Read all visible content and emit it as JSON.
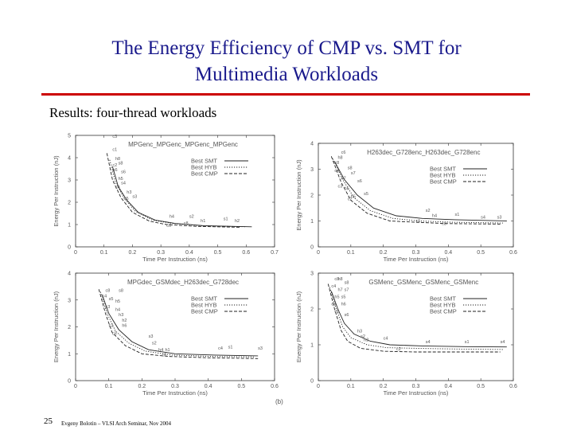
{
  "slide": {
    "title_line1": "The Energy Efficiency of CMP vs. SMT for",
    "title_line2": "Multimedia Workloads",
    "subtitle": "Results: four-thread workloads",
    "page_number": "25",
    "footer": "Evgeny Bolotin – VLSI Arch Seminar, Nov 2004",
    "figure_label": "(b)",
    "title_color": "#1a1a8c",
    "rule_color": "#cc0000"
  },
  "chart_data": [
    {
      "type": "line",
      "title": "MPGenc_MPGenc_MPGenc_MPGenc",
      "xlabel": "Time Per Instruction (ns)",
      "ylabel": "Energy Per Instruction (nJ)",
      "xlim": [
        0,
        0.7
      ],
      "ylim": [
        0,
        5
      ],
      "xticks": [
        "0",
        "0.1",
        "0.2",
        "0.3",
        "0.4",
        "0.5",
        "0.6",
        "0.7"
      ],
      "yticks": [
        "0",
        "1",
        "2",
        "3",
        "4",
        "5"
      ],
      "legend_position": "top-right",
      "series": [
        {
          "name": "Best SMT",
          "style": "solid",
          "x": [
            0.13,
            0.15,
            0.18,
            0.22,
            0.28,
            0.35,
            0.45,
            0.62
          ],
          "y": [
            3.6,
            2.7,
            2.1,
            1.55,
            1.2,
            1.05,
            0.95,
            0.9
          ]
        },
        {
          "name": "Best HYB",
          "style": "dotted",
          "x": [
            0.12,
            0.14,
            0.17,
            0.21,
            0.27,
            0.34,
            0.44,
            0.6
          ],
          "y": [
            3.9,
            2.9,
            2.2,
            1.6,
            1.2,
            1.05,
            0.95,
            0.9
          ]
        },
        {
          "name": "Best CMP",
          "style": "dashed",
          "x": [
            0.11,
            0.13,
            0.16,
            0.2,
            0.26,
            0.32,
            0.42,
            0.58
          ],
          "y": [
            4.2,
            3.0,
            2.2,
            1.55,
            1.15,
            1.0,
            0.92,
            0.88
          ]
        }
      ],
      "labels": [
        {
          "text": "c3",
          "x": 0.13,
          "y": 4.9
        },
        {
          "text": "c1",
          "x": 0.13,
          "y": 4.3
        },
        {
          "text": "h8",
          "x": 0.14,
          "y": 3.9
        },
        {
          "text": "c2",
          "x": 0.13,
          "y": 3.6
        },
        {
          "text": "s8",
          "x": 0.15,
          "y": 3.7
        },
        {
          "text": "h6",
          "x": 0.13,
          "y": 3.4
        },
        {
          "text": "s6",
          "x": 0.16,
          "y": 3.3
        },
        {
          "text": "h5",
          "x": 0.15,
          "y": 3.0
        },
        {
          "text": "s4",
          "x": 0.16,
          "y": 2.8
        },
        {
          "text": "c4",
          "x": 0.14,
          "y": 2.6
        },
        {
          "text": "h3",
          "x": 0.18,
          "y": 2.4
        },
        {
          "text": "s3",
          "x": 0.2,
          "y": 2.2
        },
        {
          "text": "c5",
          "x": 0.17,
          "y": 2.1
        },
        {
          "text": "h4",
          "x": 0.33,
          "y": 1.3
        },
        {
          "text": "s2",
          "x": 0.4,
          "y": 1.3
        },
        {
          "text": "s1",
          "x": 0.52,
          "y": 1.2
        },
        {
          "text": "h2",
          "x": 0.56,
          "y": 1.1
        },
        {
          "text": "c6",
          "x": 0.32,
          "y": 0.9
        },
        {
          "text": "c8",
          "x": 0.38,
          "y": 1.0
        },
        {
          "text": "h1",
          "x": 0.44,
          "y": 1.1
        }
      ]
    },
    {
      "type": "line",
      "title": "H263dec_G728enc_H263dec_G728enc",
      "xlabel": "Time Per Instruction (ns)",
      "ylabel": "Energy Per Instruction (nJ)",
      "xlim": [
        0,
        0.6
      ],
      "ylim": [
        0,
        4
      ],
      "xticks": [
        "0",
        "0.1",
        "0.2",
        "0.3",
        "0.4",
        "0.5",
        "0.6"
      ],
      "yticks": [
        "0",
        "1",
        "2",
        "3",
        "4"
      ],
      "legend_position": "top-right",
      "series": [
        {
          "name": "Best SMT",
          "style": "solid",
          "x": [
            0.05,
            0.08,
            0.12,
            0.17,
            0.24,
            0.32,
            0.42,
            0.58
          ],
          "y": [
            3.3,
            2.6,
            2.0,
            1.5,
            1.2,
            1.1,
            1.05,
            1.0
          ]
        },
        {
          "name": "Best HYB",
          "style": "dotted",
          "x": [
            0.045,
            0.075,
            0.11,
            0.16,
            0.23,
            0.31,
            0.41,
            0.57
          ],
          "y": [
            3.4,
            2.6,
            1.9,
            1.4,
            1.1,
            1.0,
            0.95,
            0.92
          ]
        },
        {
          "name": "Best CMP",
          "style": "dashed",
          "x": [
            0.04,
            0.07,
            0.1,
            0.15,
            0.22,
            0.3,
            0.4,
            0.56
          ],
          "y": [
            3.5,
            2.5,
            1.8,
            1.3,
            1.0,
            0.95,
            0.9,
            0.88
          ]
        }
      ],
      "labels": [
        {
          "text": "c6",
          "x": 0.07,
          "y": 3.6
        },
        {
          "text": "h8",
          "x": 0.06,
          "y": 3.4
        },
        {
          "text": "c8",
          "x": 0.05,
          "y": 3.2
        },
        {
          "text": "s8",
          "x": 0.09,
          "y": 3.0
        },
        {
          "text": "s7",
          "x": 0.1,
          "y": 2.8
        },
        {
          "text": "c4",
          "x": 0.05,
          "y": 2.9
        },
        {
          "text": "h7",
          "x": 0.07,
          "y": 2.6
        },
        {
          "text": "s6",
          "x": 0.12,
          "y": 2.5
        },
        {
          "text": "c3",
          "x": 0.06,
          "y": 2.3
        },
        {
          "text": "h6",
          "x": 0.08,
          "y": 2.2
        },
        {
          "text": "s5",
          "x": 0.14,
          "y": 2.0
        },
        {
          "text": "h5",
          "x": 0.1,
          "y": 1.9
        },
        {
          "text": "c2",
          "x": 0.09,
          "y": 1.8
        },
        {
          "text": "s2",
          "x": 0.33,
          "y": 1.35
        },
        {
          "text": "h4",
          "x": 0.35,
          "y": 1.15
        },
        {
          "text": "s1",
          "x": 0.42,
          "y": 1.2
        },
        {
          "text": "s4",
          "x": 0.5,
          "y": 1.1
        },
        {
          "text": "s3",
          "x": 0.55,
          "y": 1.1
        },
        {
          "text": "c1",
          "x": 0.3,
          "y": 0.95
        },
        {
          "text": "c8",
          "x": 0.38,
          "y": 0.85
        }
      ]
    },
    {
      "type": "line",
      "title": "MPGdec_GSMdec_H263dec_G728dec",
      "xlabel": "Time Per Instruction (ns)",
      "ylabel": "Energy Per Instruction (nJ)",
      "xlim": [
        0,
        0.6
      ],
      "ylim": [
        0,
        4
      ],
      "xticks": [
        "0",
        "0.1",
        "0.2",
        "0.3",
        "0.4",
        "0.5",
        "0.6"
      ],
      "yticks": [
        "0",
        "1",
        "2",
        "3",
        "4"
      ],
      "legend_position": "top-right",
      "series": [
        {
          "name": "Best SMT",
          "style": "solid",
          "x": [
            0.08,
            0.1,
            0.13,
            0.17,
            0.22,
            0.3,
            0.42,
            0.55
          ],
          "y": [
            3.2,
            2.5,
            1.9,
            1.45,
            1.15,
            1.0,
            0.95,
            0.92
          ]
        },
        {
          "name": "Best HYB",
          "style": "dotted",
          "x": [
            0.075,
            0.095,
            0.12,
            0.16,
            0.21,
            0.29,
            0.41,
            0.54
          ],
          "y": [
            3.3,
            2.5,
            1.85,
            1.4,
            1.1,
            0.95,
            0.9,
            0.88
          ]
        },
        {
          "name": "Best CMP",
          "style": "dashed",
          "x": [
            0.07,
            0.09,
            0.11,
            0.15,
            0.2,
            0.28,
            0.4,
            0.55
          ],
          "y": [
            3.4,
            2.5,
            1.8,
            1.3,
            1.0,
            0.9,
            0.85,
            0.82
          ]
        }
      ],
      "labels": [
        {
          "text": "c8",
          "x": 0.09,
          "y": 3.3
        },
        {
          "text": "s8",
          "x": 0.13,
          "y": 3.3
        },
        {
          "text": "c4",
          "x": 0.08,
          "y": 3.1
        },
        {
          "text": "s5",
          "x": 0.1,
          "y": 3.0
        },
        {
          "text": "h5",
          "x": 0.12,
          "y": 2.9
        },
        {
          "text": "c3",
          "x": 0.09,
          "y": 2.7
        },
        {
          "text": "h4",
          "x": 0.12,
          "y": 2.6
        },
        {
          "text": "h3",
          "x": 0.13,
          "y": 2.4
        },
        {
          "text": "h2",
          "x": 0.14,
          "y": 2.2
        },
        {
          "text": "c2",
          "x": 0.1,
          "y": 2.0
        },
        {
          "text": "h6",
          "x": 0.14,
          "y": 2.0
        },
        {
          "text": "c5",
          "x": 0.11,
          "y": 1.7
        },
        {
          "text": "s3",
          "x": 0.22,
          "y": 1.6
        },
        {
          "text": "s2",
          "x": 0.23,
          "y": 1.35
        },
        {
          "text": "h4",
          "x": 0.25,
          "y": 1.1
        },
        {
          "text": "h1",
          "x": 0.27,
          "y": 1.1
        },
        {
          "text": "c6",
          "x": 0.26,
          "y": 0.9
        },
        {
          "text": "c4",
          "x": 0.43,
          "y": 1.15
        },
        {
          "text": "s1",
          "x": 0.46,
          "y": 1.2
        },
        {
          "text": "s3",
          "x": 0.55,
          "y": 1.15
        }
      ]
    },
    {
      "type": "line",
      "title": "GSMenc_GSMenc_GSMenc_GSMenc",
      "xlabel": "Time Per Instruction (ns)",
      "ylabel": "Energy Per Instruction (nJ)",
      "xlim": [
        0,
        0.6
      ],
      "ylim": [
        0,
        3
      ],
      "xticks": [
        "0",
        "0.1",
        "0.2",
        "0.3",
        "0.4",
        "0.5",
        "0.6"
      ],
      "yticks": [
        "0",
        "1",
        "2",
        "3"
      ],
      "legend_position": "top-right",
      "series": [
        {
          "name": "Best SMT",
          "style": "solid",
          "x": [
            0.04,
            0.06,
            0.08,
            0.11,
            0.16,
            0.22,
            0.32,
            0.45,
            0.58
          ],
          "y": [
            2.5,
            2.0,
            1.6,
            1.3,
            1.1,
            1.0,
            0.97,
            0.95,
            0.94
          ]
        },
        {
          "name": "Best HYB",
          "style": "dotted",
          "x": [
            0.035,
            0.055,
            0.075,
            0.1,
            0.15,
            0.21,
            0.31,
            0.44,
            0.57
          ],
          "y": [
            2.6,
            2.0,
            1.5,
            1.2,
            1.0,
            0.92,
            0.9,
            0.88,
            0.87
          ]
        },
        {
          "name": "Best CMP",
          "style": "dashed",
          "x": [
            0.03,
            0.05,
            0.07,
            0.09,
            0.13,
            0.2,
            0.3,
            0.43,
            0.56
          ],
          "y": [
            2.7,
            2.0,
            1.4,
            1.1,
            0.9,
            0.82,
            0.8,
            0.8,
            0.8
          ]
        }
      ],
      "labels": [
        {
          "text": "c8",
          "x": 0.05,
          "y": 2.8
        },
        {
          "text": "h8",
          "x": 0.06,
          "y": 2.8
        },
        {
          "text": "s8",
          "x": 0.08,
          "y": 2.7
        },
        {
          "text": "c4",
          "x": 0.04,
          "y": 2.6
        },
        {
          "text": "h7",
          "x": 0.06,
          "y": 2.5
        },
        {
          "text": "s7",
          "x": 0.08,
          "y": 2.5
        },
        {
          "text": "h5",
          "x": 0.05,
          "y": 2.3
        },
        {
          "text": "s5",
          "x": 0.07,
          "y": 2.3
        },
        {
          "text": "c3",
          "x": 0.04,
          "y": 2.1
        },
        {
          "text": "h6",
          "x": 0.07,
          "y": 2.1
        },
        {
          "text": "c2",
          "x": 0.05,
          "y": 1.9
        },
        {
          "text": "s6",
          "x": 0.08,
          "y": 1.8
        },
        {
          "text": "h3",
          "x": 0.12,
          "y": 1.35
        },
        {
          "text": "s2",
          "x": 0.13,
          "y": 1.2
        },
        {
          "text": "h2",
          "x": 0.14,
          "y": 1.1
        },
        {
          "text": "c4",
          "x": 0.2,
          "y": 1.15
        },
        {
          "text": "c2",
          "x": 0.24,
          "y": 0.85
        },
        {
          "text": "s4",
          "x": 0.33,
          "y": 1.05
        },
        {
          "text": "s1",
          "x": 0.45,
          "y": 1.05
        },
        {
          "text": "s4",
          "x": 0.56,
          "y": 1.05
        }
      ]
    }
  ]
}
